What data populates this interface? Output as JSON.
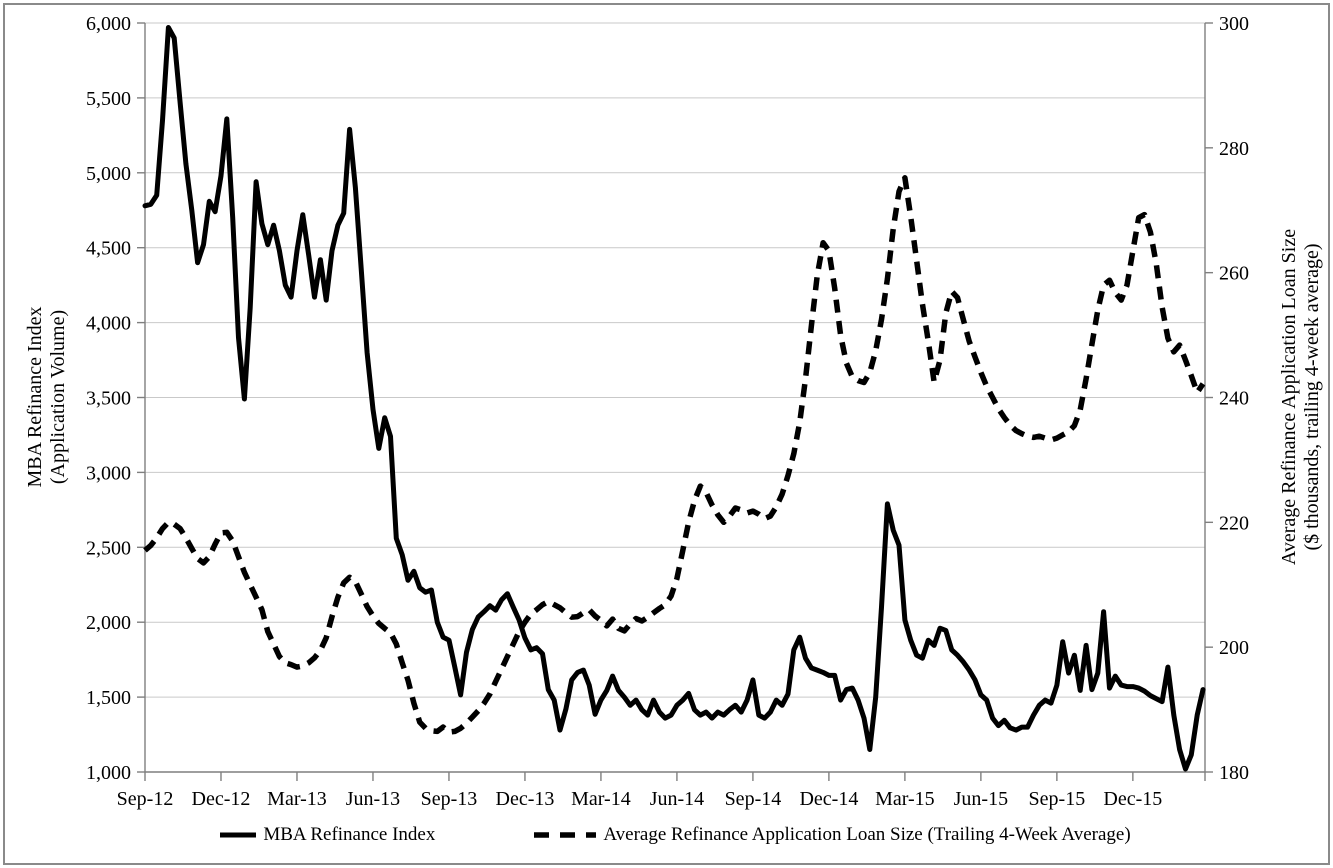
{
  "figure": {
    "background": "#ffffff",
    "colors": {
      "series_line": "#000000",
      "gridline": "#c9c9c9",
      "axis_line": "#7f7f7f",
      "frame_border": "#8a8a8a",
      "text": "#000000"
    },
    "legend": {
      "items": [
        {
          "label": "MBA Refinance Index",
          "style": "solid"
        },
        {
          "label": "Average Refinance Application Loan Size (Trailing 4-Week Average)",
          "style": "dashed"
        }
      ]
    }
  },
  "chart_data": {
    "type": "line",
    "title": "",
    "x_unit": "weekly observations, Sep-2012 through early 2016",
    "x_axis": {
      "tick_labels": [
        "Sep-12",
        "Dec-12",
        "Mar-13",
        "Jun-13",
        "Sep-13",
        "Dec-13",
        "Mar-14",
        "Jun-14",
        "Sep-14",
        "Dec-14",
        "Mar-15",
        "Jun-15",
        "Sep-15",
        "Dec-15"
      ],
      "tick_weeks": [
        0,
        13,
        26,
        39,
        52,
        65,
        78,
        91,
        104,
        117,
        130,
        143,
        156,
        169
      ],
      "total_weeks": 181
    },
    "y_left": {
      "title_lines": [
        "MBA Refinance Index",
        "(Application Volume)"
      ],
      "min": 1000,
      "max": 6000,
      "step": 500,
      "tick_values": [
        6000,
        5500,
        5000,
        4500,
        4000,
        3500,
        3000,
        2500,
        2000,
        1500,
        1000
      ],
      "tick_labels": [
        "6,000",
        "5,500",
        "5,000",
        "4,500",
        "4,000",
        "3,500",
        "3,000",
        "2,500",
        "2,000",
        "1,500",
        "1,000"
      ],
      "grid": true
    },
    "y_right": {
      "title_lines": [
        "Average Refinance Application Loan Size",
        "($ thousands, trailing 4-week average)"
      ],
      "min": 180,
      "max": 300,
      "step": 20,
      "tick_values": [
        300,
        280,
        260,
        240,
        220,
        200,
        180
      ],
      "tick_labels": [
        "300",
        "280",
        "260",
        "240",
        "220",
        "200",
        "180"
      ],
      "grid": false
    },
    "series": [
      {
        "name": "MBA Refinance Index",
        "axis": "left",
        "style": "solid",
        "values": [
          4780,
          4790,
          4850,
          5350,
          5970,
          5900,
          5470,
          5060,
          4750,
          4400,
          4520,
          4810,
          4740,
          4980,
          5360,
          4700,
          3900,
          3490,
          4100,
          4940,
          4660,
          4520,
          4650,
          4480,
          4250,
          4170,
          4480,
          4720,
          4450,
          4170,
          4420,
          4150,
          4480,
          4650,
          4730,
          5290,
          4900,
          4350,
          3800,
          3420,
          3160,
          3365,
          3240,
          2560,
          2450,
          2280,
          2340,
          2230,
          2200,
          2215,
          2000,
          1900,
          1880,
          1700,
          1515,
          1800,
          1950,
          2035,
          2070,
          2110,
          2080,
          2150,
          2190,
          2100,
          2015,
          1895,
          1815,
          1830,
          1790,
          1550,
          1480,
          1280,
          1420,
          1615,
          1665,
          1680,
          1580,
          1385,
          1480,
          1545,
          1640,
          1545,
          1500,
          1445,
          1480,
          1415,
          1380,
          1480,
          1400,
          1360,
          1380,
          1445,
          1480,
          1525,
          1415,
          1380,
          1400,
          1360,
          1400,
          1380,
          1415,
          1445,
          1400,
          1480,
          1615,
          1380,
          1360,
          1400,
          1480,
          1445,
          1520,
          1815,
          1900,
          1760,
          1695,
          1680,
          1665,
          1645,
          1645,
          1480,
          1550,
          1560,
          1480,
          1360,
          1150,
          1500,
          2100,
          2790,
          2615,
          2515,
          2015,
          1880,
          1780,
          1760,
          1880,
          1845,
          1960,
          1945,
          1815,
          1780,
          1735,
          1680,
          1615,
          1515,
          1480,
          1360,
          1310,
          1345,
          1295,
          1280,
          1300,
          1300,
          1380,
          1445,
          1480,
          1460,
          1580,
          1870,
          1660,
          1780,
          1545,
          1845,
          1550,
          1660,
          2070,
          1560,
          1640,
          1580,
          1570,
          1570,
          1560,
          1540,
          1510,
          1490,
          1470,
          1700,
          1380,
          1150,
          1020,
          1115,
          1380,
          1550
        ]
      },
      {
        "name": "Average Refinance Application Loan Size (Trailing 4-Week Average)",
        "axis": "right",
        "style": "dashed",
        "values": [
          215.5,
          216.3,
          217.5,
          219.0,
          220.0,
          219.7,
          219.0,
          217.5,
          215.8,
          214.2,
          213.5,
          214.5,
          216.5,
          218.3,
          218.4,
          217.0,
          214.5,
          212.0,
          210.0,
          208.0,
          206.0,
          202.5,
          200.5,
          198.5,
          197.5,
          197.2,
          196.8,
          197.0,
          197.5,
          198.3,
          199.5,
          201.5,
          204.9,
          208.0,
          210.3,
          211.2,
          210.5,
          208.5,
          206.5,
          205.0,
          203.8,
          203.0,
          202.3,
          200.5,
          197.5,
          194.7,
          191.0,
          188.0,
          187.0,
          186.6,
          186.5,
          187.2,
          186.4,
          186.5,
          187.0,
          187.8,
          188.8,
          189.8,
          191.0,
          192.5,
          194.5,
          196.5,
          198.5,
          200.5,
          202.5,
          204.0,
          205.3,
          206.0,
          206.8,
          207.3,
          206.8,
          206.3,
          205.5,
          204.8,
          204.9,
          205.5,
          206.0,
          205.0,
          204.3,
          203.4,
          204.5,
          203.0,
          202.6,
          203.7,
          204.6,
          204.2,
          204.8,
          205.5,
          206.2,
          206.8,
          208.2,
          211.0,
          215.5,
          220.0,
          223.5,
          225.8,
          224.8,
          222.8,
          221.2,
          220.0,
          221.0,
          222.3,
          222.0,
          221.5,
          221.8,
          221.3,
          220.6,
          221.0,
          222.5,
          224.5,
          227.5,
          231.0,
          236.0,
          243.0,
          251.5,
          259.5,
          264.8,
          263.5,
          257.5,
          250.0,
          245.5,
          243.3,
          242.7,
          242.4,
          244.0,
          247.5,
          252.5,
          259.0,
          267.0,
          273.0,
          275.2,
          269.0,
          262.0,
          255.0,
          249.0,
          242.5,
          246.0,
          253.5,
          257.0,
          256.0,
          252.5,
          249.0,
          246.5,
          244.0,
          241.8,
          240.0,
          238.2,
          236.8,
          235.6,
          234.7,
          234.2,
          233.8,
          233.6,
          233.8,
          233.5,
          233.2,
          233.5,
          234.0,
          234.5,
          235.5,
          238.0,
          243.0,
          248.5,
          254.0,
          258.0,
          258.8,
          256.8,
          255.6,
          258.0,
          263.5,
          268.8,
          269.3,
          266.5,
          261.5,
          254.5,
          249.5,
          247.3,
          248.4,
          246.0,
          243.5,
          240.8,
          242.2
        ]
      }
    ]
  }
}
